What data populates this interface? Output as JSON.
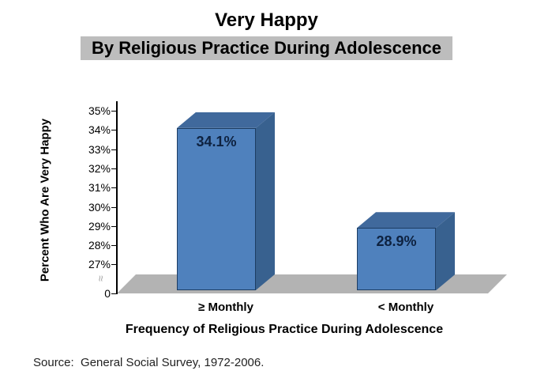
{
  "header": {
    "title": "Very Happy",
    "subtitle": "By Religious Practice During Adolescence",
    "subtitle_highlight_color": "#bdbdbd"
  },
  "footer": {
    "source": "Source:  General Social Survey, 1972-2006."
  },
  "icons": {
    "axis_break": "≈"
  },
  "chart_data": {
    "type": "bar",
    "style": "3d-column",
    "title": "Very Happy",
    "subtitle": "By Religious Practice During Adolescence",
    "xlabel": "Frequency of Religious Practice During Adolescence",
    "ylabel": "Percent Who Are Very Happy",
    "categories": [
      "≥ Monthly",
      "< Monthly"
    ],
    "values": [
      34.1,
      28.9
    ],
    "value_labels": [
      "34.1%",
      "28.9%"
    ],
    "y_ticks": [
      "35%",
      "34%",
      "33%",
      "32%",
      "31%",
      "30%",
      "29%",
      "28%",
      "27%",
      "0"
    ],
    "y_axis_break": true,
    "ylim_displayed": [
      27,
      35
    ],
    "grid": false,
    "legend": "none",
    "bar_color": "#4f81bd",
    "bar_side_color": "#38618f",
    "bar_top_color": "#40699c",
    "floor_color": "#b3b3b3"
  }
}
